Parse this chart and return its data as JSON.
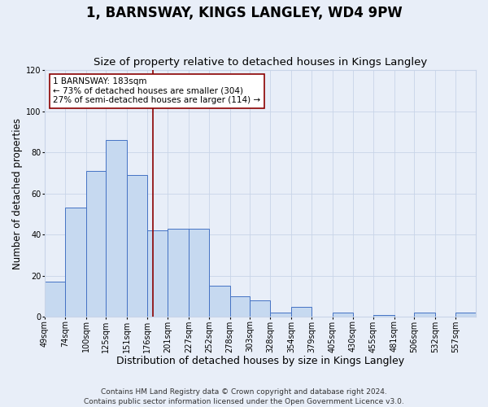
{
  "title": "1, BARNSWAY, KINGS LANGLEY, WD4 9PW",
  "subtitle": "Size of property relative to detached houses in Kings Langley",
  "xlabel": "Distribution of detached houses by size in Kings Langley",
  "ylabel": "Number of detached properties",
  "bar_values": [
    17,
    53,
    71,
    86,
    69,
    42,
    43,
    43,
    15,
    10,
    8,
    2,
    5,
    0,
    2,
    0,
    1,
    0,
    2,
    0,
    2
  ],
  "bar_labels": [
    "49sqm",
    "74sqm",
    "100sqm",
    "125sqm",
    "151sqm",
    "176sqm",
    "201sqm",
    "227sqm",
    "252sqm",
    "278sqm",
    "303sqm",
    "328sqm",
    "354sqm",
    "379sqm",
    "405sqm",
    "430sqm",
    "455sqm",
    "481sqm",
    "506sqm",
    "532sqm",
    "557sqm"
  ],
  "bar_edges": [
    49,
    74,
    100,
    125,
    151,
    176,
    201,
    227,
    252,
    278,
    303,
    328,
    354,
    379,
    405,
    430,
    455,
    481,
    506,
    532,
    557,
    582
  ],
  "bar_color": "#c6d9f0",
  "bar_edge_color": "#4472c4",
  "vline_x": 183,
  "vline_color": "#8b0000",
  "annotation_title": "1 BARNSWAY: 183sqm",
  "annotation_line1": "← 73% of detached houses are smaller (304)",
  "annotation_line2": "27% of semi-detached houses are larger (114) →",
  "annotation_box_color": "#ffffff",
  "annotation_box_edge": "#8b0000",
  "ylim": [
    0,
    120
  ],
  "yticks": [
    0,
    20,
    40,
    60,
    80,
    100,
    120
  ],
  "grid_color": "#c8d4e8",
  "background_color": "#e8eef8",
  "plot_bg_color": "#e8eef8",
  "footer_line1": "Contains HM Land Registry data © Crown copyright and database right 2024.",
  "footer_line2": "Contains public sector information licensed under the Open Government Licence v3.0.",
  "title_fontsize": 12,
  "subtitle_fontsize": 9.5,
  "xlabel_fontsize": 9,
  "ylabel_fontsize": 8.5,
  "tick_fontsize": 7,
  "annotation_fontsize": 7.5,
  "footer_fontsize": 6.5
}
